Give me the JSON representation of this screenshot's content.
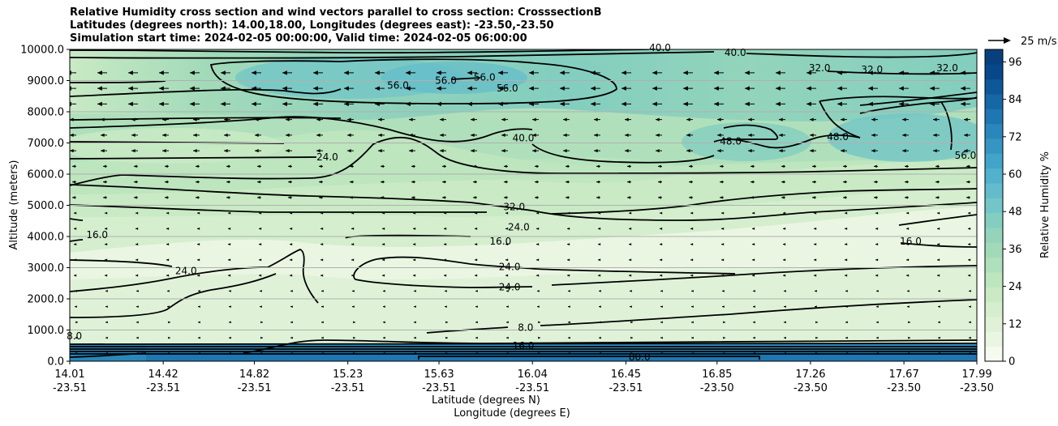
{
  "chart_data": {
    "type": "contour",
    "title_lines": [
      "Relative Humidity cross section and wind vectors parallel to cross section: CrosssectionB",
      "Latitudes (degrees north): 14.00,18.00, Longitudes (degrees east): -23.50,-23.50",
      "Simulation start time: 2024-02-05 00:00:00, Valid time: 2024-02-05 06:00:00"
    ],
    "ylabel": "Altitude (meters)",
    "xlabel_lat": "Latitude (degrees N)",
    "xlabel_lon": "Longitude (degrees E)",
    "ylim": [
      0,
      10000
    ],
    "y_ticks": [
      "0.0",
      "1000.0",
      "2000.0",
      "3000.0",
      "4000.0",
      "5000.0",
      "6000.0",
      "7000.0",
      "8000.0",
      "9000.0",
      "10000.0"
    ],
    "x_ticks": [
      {
        "lat": "14.01",
        "lon": "-23.51"
      },
      {
        "lat": "14.42",
        "lon": "-23.51"
      },
      {
        "lat": "14.82",
        "lon": "-23.51"
      },
      {
        "lat": "15.23",
        "lon": "-23.51"
      },
      {
        "lat": "15.63",
        "lon": "-23.51"
      },
      {
        "lat": "16.04",
        "lon": "-23.51"
      },
      {
        "lat": "16.45",
        "lon": "-23.51"
      },
      {
        "lat": "16.85",
        "lon": "-23.50"
      },
      {
        "lat": "17.26",
        "lon": "-23.50"
      },
      {
        "lat": "17.67",
        "lon": "-23.50"
      },
      {
        "lat": "17.99",
        "lon": "-23.50"
      }
    ],
    "colorbar": {
      "label": "Relative Humidity %",
      "range": [
        0,
        100
      ],
      "ticks": [
        "0",
        "12",
        "24",
        "36",
        "48",
        "60",
        "72",
        "84",
        "96"
      ],
      "palette": [
        "#f6fbf0",
        "#eaf6e2",
        "#dff2d8",
        "#d4eece",
        "#c9eac4",
        "#bde5be",
        "#b0e0bb",
        "#a2dab9",
        "#93d4bb",
        "#83cebf",
        "#73c6c7",
        "#62bccb",
        "#52b1cd",
        "#43a4c9",
        "#3596c3",
        "#2987bb",
        "#1e77b0",
        "#1667a5",
        "#0e5798",
        "#08478a",
        "#08407e"
      ]
    },
    "wind_key": {
      "label": "25 m/s",
      "speed": 25
    },
    "contour_labels": [
      {
        "text": "56.0",
        "lat": 15.45,
        "alt": 8850
      },
      {
        "text": "56.0",
        "lat": 15.66,
        "alt": 9000
      },
      {
        "text": "56.0",
        "lat": 15.83,
        "alt": 9100
      },
      {
        "text": "56.0",
        "lat": 15.93,
        "alt": 8750
      },
      {
        "text": "40.0",
        "lat": 16.0,
        "alt": 7150
      },
      {
        "text": "40.0",
        "lat": 16.6,
        "alt": 10050
      },
      {
        "text": "40.0",
        "lat": 16.93,
        "alt": 9900
      },
      {
        "text": "32.0",
        "lat": 17.3,
        "alt": 9400
      },
      {
        "text": "32.0",
        "lat": 17.53,
        "alt": 9350
      },
      {
        "text": "32.0",
        "lat": 17.86,
        "alt": 9400
      },
      {
        "text": "48.0",
        "lat": 16.91,
        "alt": 7050
      },
      {
        "text": "48.0",
        "lat": 17.38,
        "alt": 7200
      },
      {
        "text": "56.0",
        "lat": 17.94,
        "alt": 6600
      },
      {
        "text": "24.0",
        "lat": 15.14,
        "alt": 6550
      },
      {
        "text": "32.0",
        "lat": 15.96,
        "alt": 4950
      },
      {
        "text": "24.0",
        "lat": 15.98,
        "alt": 4300
      },
      {
        "text": "16.0",
        "lat": 14.13,
        "alt": 4050
      },
      {
        "text": "16.0",
        "lat": 15.9,
        "alt": 3850
      },
      {
        "text": "16.0",
        "lat": 17.7,
        "alt": 3850
      },
      {
        "text": "24.0",
        "lat": 14.52,
        "alt": 2900
      },
      {
        "text": "24.0",
        "lat": 15.94,
        "alt": 3030
      },
      {
        "text": "24.0",
        "lat": 15.94,
        "alt": 2380
      },
      {
        "text": "8.0",
        "lat": 16.01,
        "alt": 1080
      },
      {
        "text": "16.0",
        "lat": 16.0,
        "alt": 500
      },
      {
        "text": "8.0",
        "lat": 14.03,
        "alt": 800
      },
      {
        "text": "80.0",
        "lat": 16.51,
        "alt": 130
      }
    ]
  }
}
